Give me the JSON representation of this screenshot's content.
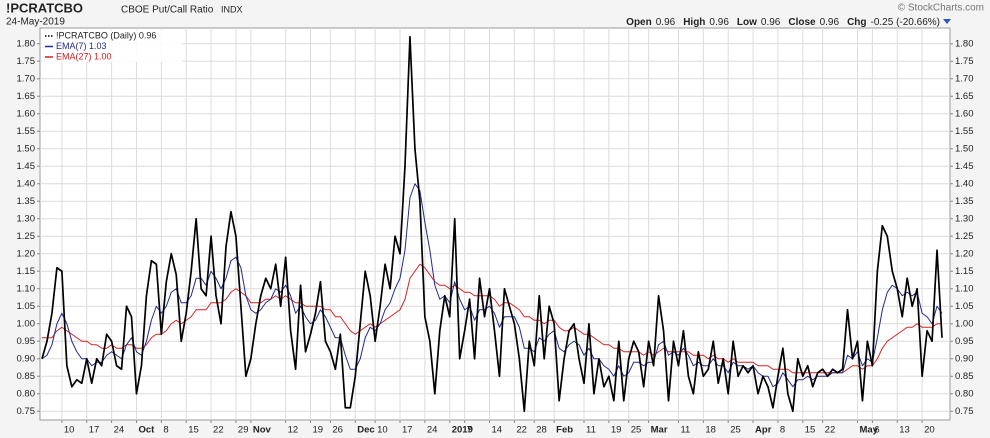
{
  "header": {
    "symbol": "!PCRATCBO",
    "name": "CBOE Put/Call Ratio",
    "exchange": "INDX",
    "date": "24-May-2019",
    "credit": "© StockCharts.com",
    "quote": [
      {
        "label": "Open",
        "value": "0.96"
      },
      {
        "label": "High",
        "value": "0.96"
      },
      {
        "label": "Low",
        "value": "0.96"
      },
      {
        "label": "Close",
        "value": "0.96"
      },
      {
        "label": "Chg",
        "value": "-0.25 (-20.66%)"
      }
    ]
  },
  "chart_data": {
    "type": "line",
    "categories": [
      null,
      null,
      null,
      null,
      "10",
      null,
      null,
      null,
      null,
      "17",
      null,
      null,
      null,
      null,
      "24",
      null,
      null,
      null,
      null,
      "Oct",
      null,
      null,
      null,
      null,
      "8",
      null,
      null,
      null,
      null,
      "15",
      null,
      null,
      null,
      null,
      "22",
      null,
      null,
      null,
      null,
      "29",
      null,
      null,
      "Nov",
      null,
      null,
      null,
      null,
      null,
      null,
      "12",
      null,
      null,
      null,
      null,
      "19",
      null,
      null,
      null,
      "26",
      null,
      null,
      null,
      null,
      "Dec",
      null,
      null,
      null,
      "10",
      null,
      null,
      null,
      null,
      "17",
      null,
      null,
      null,
      null,
      "24",
      null,
      null,
      null,
      null,
      "2019",
      null,
      null,
      "7",
      null,
      null,
      null,
      null,
      "14",
      null,
      null,
      null,
      null,
      "22",
      null,
      null,
      null,
      "28",
      null,
      null,
      null,
      "Feb",
      null,
      null,
      null,
      null,
      null,
      "11",
      null,
      null,
      null,
      null,
      "19",
      null,
      null,
      null,
      "25",
      null,
      null,
      null,
      "Mar",
      null,
      null,
      null,
      null,
      null,
      "11",
      null,
      null,
      null,
      null,
      "18",
      null,
      null,
      null,
      null,
      "25",
      null,
      null,
      null,
      null,
      "Apr",
      null,
      null,
      null,
      null,
      "8",
      null,
      null,
      null,
      null,
      "15",
      null,
      null,
      null,
      "22",
      null,
      null,
      null,
      null,
      null,
      null,
      "May",
      null,
      null,
      "6",
      null,
      null,
      null,
      null,
      "13",
      null,
      null,
      null,
      null,
      "20",
      null,
      null,
      null,
      null
    ],
    "series": [
      {
        "name": "!PCRATCBO (Daily) 0.96",
        "color": "#000000",
        "values": [
          0.9,
          0.95,
          1.03,
          1.16,
          1.15,
          0.88,
          0.82,
          0.84,
          0.83,
          0.9,
          0.83,
          0.9,
          0.88,
          0.97,
          0.95,
          0.88,
          0.87,
          1.05,
          1.02,
          0.8,
          0.88,
          1.08,
          1.18,
          1.17,
          0.97,
          1.12,
          1.2,
          1.14,
          0.95,
          1.03,
          1.15,
          1.3,
          1.1,
          1.08,
          1.25,
          1.08,
          1.0,
          1.22,
          1.32,
          1.25,
          1.05,
          0.85,
          0.9,
          1.0,
          1.08,
          1.13,
          1.1,
          1.17,
          1.05,
          1.19,
          0.98,
          0.87,
          1.11,
          0.92,
          0.97,
          1.03,
          1.12,
          0.95,
          0.92,
          0.87,
          0.97,
          0.76,
          0.76,
          0.85,
          1.0,
          1.15,
          1.08,
          0.95,
          1.05,
          1.17,
          1.1,
          1.25,
          1.2,
          1.45,
          1.82,
          1.5,
          1.35,
          1.02,
          0.95,
          0.8,
          0.98,
          1.08,
          1.02,
          1.3,
          0.9,
          0.98,
          1.07,
          0.9,
          1.13,
          1.02,
          1.1,
          0.98,
          0.85,
          1.1,
          1.05,
          1.0,
          0.9,
          0.75,
          0.95,
          0.88,
          1.08,
          0.9,
          1.05,
          1.0,
          0.78,
          0.9,
          0.98,
          1.0,
          0.9,
          0.83,
          1.0,
          0.8,
          0.9,
          0.82,
          0.85,
          0.78,
          0.95,
          0.78,
          0.9,
          0.95,
          0.92,
          0.82,
          0.95,
          0.88,
          1.08,
          0.98,
          0.78,
          0.95,
          0.88,
          0.98,
          0.85,
          0.8,
          0.92,
          0.85,
          0.87,
          0.95,
          0.83,
          0.9,
          0.8,
          0.95,
          0.85,
          0.88,
          0.86,
          0.88,
          0.8,
          0.85,
          0.82,
          0.76,
          0.85,
          0.93,
          0.8,
          0.75,
          0.9,
          0.85,
          0.88,
          0.82,
          0.86,
          0.87,
          0.85,
          0.87,
          0.86,
          0.87,
          1.04,
          0.9,
          0.95,
          0.78,
          0.95,
          0.88,
          1.15,
          1.28,
          1.25,
          1.15,
          1.1,
          1.02,
          1.13,
          1.05,
          1.1,
          0.85,
          0.98,
          0.95,
          1.21,
          0.96
        ]
      },
      {
        "name": "EMA(7) 1.03",
        "color": "#1f2a8c",
        "values": [
          0.9,
          0.91,
          0.94,
          1.0,
          1.03,
          1.0,
          0.95,
          0.92,
          0.9,
          0.9,
          0.88,
          0.89,
          0.89,
          0.91,
          0.92,
          0.91,
          0.9,
          0.94,
          0.96,
          0.92,
          0.91,
          0.95,
          1.01,
          1.05,
          1.03,
          1.05,
          1.09,
          1.1,
          1.06,
          1.06,
          1.08,
          1.13,
          1.13,
          1.11,
          1.15,
          1.13,
          1.1,
          1.13,
          1.18,
          1.19,
          1.16,
          1.08,
          1.04,
          1.03,
          1.04,
          1.06,
          1.07,
          1.1,
          1.09,
          1.11,
          1.08,
          1.03,
          1.05,
          1.02,
          1.0,
          1.01,
          1.04,
          1.02,
          0.99,
          0.96,
          0.96,
          0.91,
          0.87,
          0.87,
          0.9,
          0.96,
          0.99,
          0.98,
          1.0,
          1.04,
          1.06,
          1.1,
          1.13,
          1.21,
          1.36,
          1.4,
          1.38,
          1.29,
          1.21,
          1.11,
          1.07,
          1.08,
          1.06,
          1.12,
          1.07,
          1.04,
          1.05,
          1.01,
          1.04,
          1.04,
          1.05,
          1.03,
          0.99,
          1.02,
          1.02,
          1.02,
          0.99,
          0.93,
          0.93,
          0.92,
          0.96,
          0.95,
          0.97,
          0.98,
          0.93,
          0.92,
          0.94,
          0.95,
          0.94,
          0.91,
          0.93,
          0.9,
          0.9,
          0.88,
          0.87,
          0.85,
          0.88,
          0.85,
          0.86,
          0.89,
          0.89,
          0.88,
          0.89,
          0.89,
          0.94,
          0.95,
          0.91,
          0.92,
          0.91,
          0.93,
          0.91,
          0.88,
          0.89,
          0.88,
          0.88,
          0.9,
          0.88,
          0.88,
          0.86,
          0.89,
          0.88,
          0.88,
          0.87,
          0.88,
          0.86,
          0.85,
          0.85,
          0.82,
          0.83,
          0.86,
          0.84,
          0.82,
          0.84,
          0.84,
          0.85,
          0.84,
          0.85,
          0.85,
          0.85,
          0.86,
          0.86,
          0.86,
          0.91,
          0.9,
          0.92,
          0.88,
          0.9,
          0.89,
          0.96,
          1.04,
          1.09,
          1.11,
          1.1,
          1.08,
          1.09,
          1.08,
          1.09,
          1.03,
          1.02,
          1.0,
          1.05,
          1.03
        ]
      },
      {
        "name": "EMA(27) 1.00",
        "color": "#d62020",
        "values": [
          0.96,
          0.96,
          0.96,
          0.98,
          0.99,
          0.98,
          0.97,
          0.96,
          0.95,
          0.95,
          0.94,
          0.94,
          0.93,
          0.93,
          0.94,
          0.93,
          0.93,
          0.94,
          0.94,
          0.93,
          0.93,
          0.94,
          0.96,
          0.97,
          0.97,
          0.98,
          1.0,
          1.01,
          1.0,
          1.01,
          1.02,
          1.04,
          1.04,
          1.04,
          1.06,
          1.06,
          1.06,
          1.07,
          1.09,
          1.1,
          1.09,
          1.08,
          1.06,
          1.06,
          1.06,
          1.07,
          1.07,
          1.08,
          1.07,
          1.08,
          1.07,
          1.06,
          1.06,
          1.05,
          1.05,
          1.05,
          1.05,
          1.04,
          1.04,
          1.02,
          1.02,
          1.0,
          0.98,
          0.97,
          0.98,
          0.99,
          1.0,
          0.99,
          1.0,
          1.01,
          1.02,
          1.03,
          1.04,
          1.07,
          1.13,
          1.15,
          1.17,
          1.16,
          1.14,
          1.12,
          1.11,
          1.11,
          1.1,
          1.11,
          1.1,
          1.09,
          1.09,
          1.08,
          1.08,
          1.08,
          1.08,
          1.07,
          1.05,
          1.06,
          1.06,
          1.05,
          1.04,
          1.02,
          1.02,
          1.01,
          1.01,
          1.0,
          1.01,
          1.01,
          0.99,
          0.98,
          0.98,
          0.99,
          0.98,
          0.97,
          0.97,
          0.96,
          0.95,
          0.94,
          0.94,
          0.93,
          0.93,
          0.92,
          0.92,
          0.92,
          0.92,
          0.91,
          0.92,
          0.91,
          0.92,
          0.93,
          0.92,
          0.92,
          0.92,
          0.92,
          0.92,
          0.91,
          0.91,
          0.91,
          0.9,
          0.91,
          0.9,
          0.9,
          0.89,
          0.9,
          0.89,
          0.89,
          0.89,
          0.89,
          0.88,
          0.88,
          0.88,
          0.87,
          0.87,
          0.87,
          0.87,
          0.86,
          0.86,
          0.86,
          0.86,
          0.86,
          0.86,
          0.86,
          0.86,
          0.86,
          0.86,
          0.86,
          0.87,
          0.88,
          0.88,
          0.87,
          0.88,
          0.88,
          0.9,
          0.93,
          0.95,
          0.96,
          0.97,
          0.98,
          0.99,
          0.99,
          1.0,
          0.99,
          0.99,
          0.99,
          1.0,
          1.0
        ]
      }
    ],
    "ylim": [
      0.725,
      1.845
    ],
    "yticks": [
      {
        "value": 0.75,
        "label": "0.75"
      },
      {
        "value": 0.8,
        "label": "0.80"
      },
      {
        "value": 0.85,
        "label": "0.85"
      },
      {
        "value": 0.9,
        "label": "0.90"
      },
      {
        "value": 0.95,
        "label": "0.95"
      },
      {
        "value": 1.0,
        "label": "1.00"
      },
      {
        "value": 1.05,
        "label": "1.05"
      },
      {
        "value": 1.1,
        "label": "1.10"
      },
      {
        "value": 1.15,
        "label": "1.15"
      },
      {
        "value": 1.2,
        "label": "1.20"
      },
      {
        "value": 1.25,
        "label": "1.25"
      },
      {
        "value": 1.3,
        "label": "1.30"
      },
      {
        "value": 1.35,
        "label": "1.35"
      },
      {
        "value": 1.4,
        "label": "1.40"
      },
      {
        "value": 1.45,
        "label": "1.45"
      },
      {
        "value": 1.5,
        "label": "1.50"
      },
      {
        "value": 1.55,
        "label": "1.55"
      },
      {
        "value": 1.6,
        "label": "1.60"
      },
      {
        "value": 1.65,
        "label": "1.65"
      },
      {
        "value": 1.7,
        "label": "1.70"
      },
      {
        "value": 1.75,
        "label": "1.75"
      },
      {
        "value": 1.8,
        "label": "1.80"
      }
    ],
    "grid": true,
    "legend": "top-left"
  }
}
